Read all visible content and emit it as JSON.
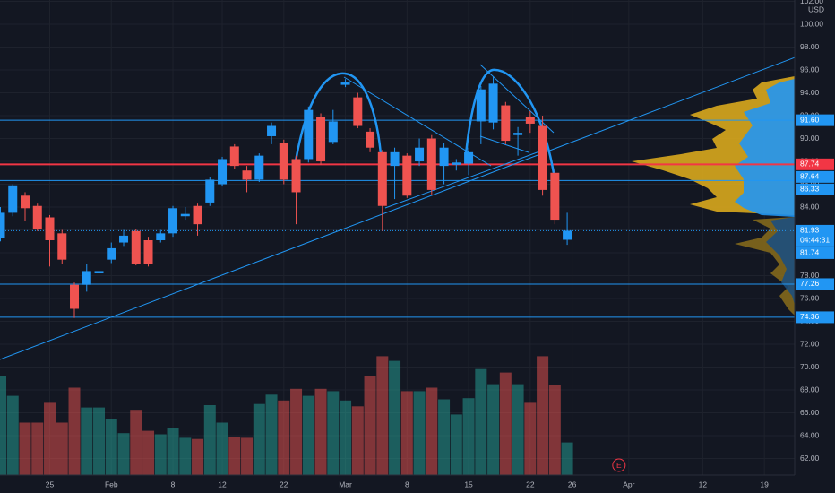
{
  "chart_data": {
    "type": "candlestick",
    "currency": "USD",
    "ylim": [
      60.55,
      102.12
    ],
    "yticks": [
      {
        "value": 62,
        "label": "62.00"
      },
      {
        "value": 64,
        "label": "64.00"
      },
      {
        "value": 66,
        "label": "66.00"
      },
      {
        "value": 68,
        "label": "68.00"
      },
      {
        "value": 70,
        "label": "70.00"
      },
      {
        "value": 72,
        "label": "72.00"
      },
      {
        "value": 74,
        "label": "74.00"
      },
      {
        "value": 76,
        "label": "76.00"
      },
      {
        "value": 78,
        "label": "78.00"
      },
      {
        "value": 80,
        "label": "80.00"
      },
      {
        "value": 82,
        "label": "82.00"
      },
      {
        "value": 84,
        "label": "84.00"
      },
      {
        "value": 86,
        "label": "86.00"
      },
      {
        "value": 88,
        "label": "88.00"
      },
      {
        "value": 90,
        "label": "90.00"
      },
      {
        "value": 92,
        "label": "92.00"
      },
      {
        "value": 94,
        "label": "94.00"
      },
      {
        "value": 96,
        "label": "96.00"
      },
      {
        "value": 98,
        "label": "98.00"
      },
      {
        "value": 100,
        "label": "100.00"
      },
      {
        "value": 102,
        "label": "102.00"
      }
    ],
    "xlim": [
      0,
      64.5
    ],
    "xticks": [
      {
        "value": 4,
        "label": "25"
      },
      {
        "value": 9,
        "label": "Feb"
      },
      {
        "value": 14,
        "label": "8"
      },
      {
        "value": 18,
        "label": "12"
      },
      {
        "value": 23,
        "label": "22"
      },
      {
        "value": 28,
        "label": "Mar"
      },
      {
        "value": 33,
        "label": "8"
      },
      {
        "value": 38,
        "label": "15"
      },
      {
        "value": 43,
        "label": "22"
      },
      {
        "value": 46.4,
        "label": "26"
      },
      {
        "value": 51,
        "label": "Apr"
      },
      {
        "value": 57,
        "label": "12"
      },
      {
        "value": 62,
        "label": "19"
      }
    ],
    "up_color": "#2196f3",
    "down_color": "#ef5350",
    "volume_up_color": "#26a69a",
    "volume_down_color": "#ef5350",
    "volume_lim": [
      0,
      100
    ],
    "open": [
      81.3,
      83.5,
      85.0,
      84.1,
      83.1,
      81.7,
      77.2,
      77.2,
      78.2,
      79.4,
      80.9,
      81.9,
      81.1,
      81.1,
      81.7,
      83.2,
      84.1,
      84.4,
      86.0,
      89.3,
      87.2,
      86.4,
      90.2,
      89.6,
      88.2,
      88.2,
      91.9,
      89.7,
      94.7,
      93.6,
      90.6,
      88.8,
      87.6,
      88.5,
      88.0,
      90.0,
      87.6,
      87.7,
      87.8,
      91.5,
      91.4,
      92.9,
      90.3,
      91.9,
      91.1,
      87.0,
      81.14
    ],
    "high": [
      84.0,
      86.0,
      85.3,
      84.3,
      83.3,
      82.0,
      77.4,
      79.0,
      78.9,
      80.9,
      82.0,
      82.1,
      81.4,
      82.0,
      84.1,
      84.0,
      84.3,
      86.6,
      88.4,
      89.5,
      87.6,
      88.7,
      91.4,
      89.9,
      88.5,
      92.8,
      92.2,
      92.5,
      95.2,
      94.0,
      90.9,
      89.0,
      89.2,
      88.7,
      90.0,
      90.3,
      89.6,
      88.2,
      89.2,
      94.6,
      95.4,
      93.2,
      91.0,
      92.4,
      92.0,
      87.4,
      83.5
    ],
    "low": [
      81.0,
      83.2,
      82.8,
      81.9,
      78.8,
      79.0,
      74.3,
      76.6,
      76.9,
      79.1,
      80.6,
      78.9,
      78.8,
      80.9,
      81.4,
      82.9,
      81.5,
      84.1,
      85.8,
      87.3,
      85.3,
      86.2,
      89.5,
      86.0,
      82.5,
      87.9,
      87.7,
      89.5,
      94.5,
      90.9,
      88.8,
      81.9,
      84.7,
      84.8,
      87.6,
      85.1,
      86.0,
      87.2,
      86.8,
      89.5,
      90.8,
      89.5,
      88.5,
      90.5,
      85.0,
      82.5,
      80.7
    ],
    "close": [
      83.5,
      85.9,
      83.9,
      82.1,
      81.1,
      79.4,
      75.1,
      78.4,
      78.4,
      80.4,
      81.5,
      79.0,
      79.0,
      81.7,
      83.9,
      83.4,
      82.5,
      86.4,
      88.2,
      87.6,
      86.4,
      88.5,
      91.1,
      86.4,
      85.3,
      92.5,
      88.0,
      91.5,
      94.9,
      91.1,
      89.2,
      84.1,
      88.8,
      85.0,
      89.2,
      85.5,
      89.2,
      87.9,
      88.8,
      94.3,
      94.8,
      89.8,
      90.5,
      91.3,
      85.5,
      82.9,
      81.93
    ],
    "volume": [
      85,
      68,
      45,
      45,
      62,
      45,
      75,
      58,
      58,
      48,
      36,
      56,
      38,
      35,
      40,
      32,
      31,
      60,
      45,
      33,
      32,
      61,
      69,
      64,
      74,
      68,
      74,
      72,
      64,
      59,
      85,
      102,
      98,
      72,
      72,
      75,
      65,
      52,
      66,
      91,
      78,
      88,
      78,
      62,
      102,
      77,
      28
    ],
    "levels": [
      {
        "value": 91.6,
        "label": "91.60",
        "color": "#2196f3",
        "line": true
      },
      {
        "value": 87.74,
        "label": "87.74",
        "color": "#f23645",
        "line": true
      },
      {
        "value": 87.64,
        "label": "87.64",
        "color": "#2196f3",
        "line": false
      },
      {
        "value": 86.33,
        "label": "86.33",
        "color": "#2196f3",
        "line": true
      },
      {
        "value": 81.93,
        "label": "81.93",
        "color": "#2196f3",
        "line": true,
        "dashed": true,
        "countdown": "04:44:31"
      },
      {
        "value": 81.74,
        "label": "81.74",
        "color": "#2196f3",
        "line": false
      },
      {
        "value": 77.26,
        "label": "77.26",
        "color": "#2196f3",
        "line": true
      },
      {
        "value": 74.36,
        "label": "74.36",
        "color": "#2196f3",
        "line": true
      }
    ],
    "event_marker": {
      "label": "E",
      "x": 50.2
    }
  }
}
